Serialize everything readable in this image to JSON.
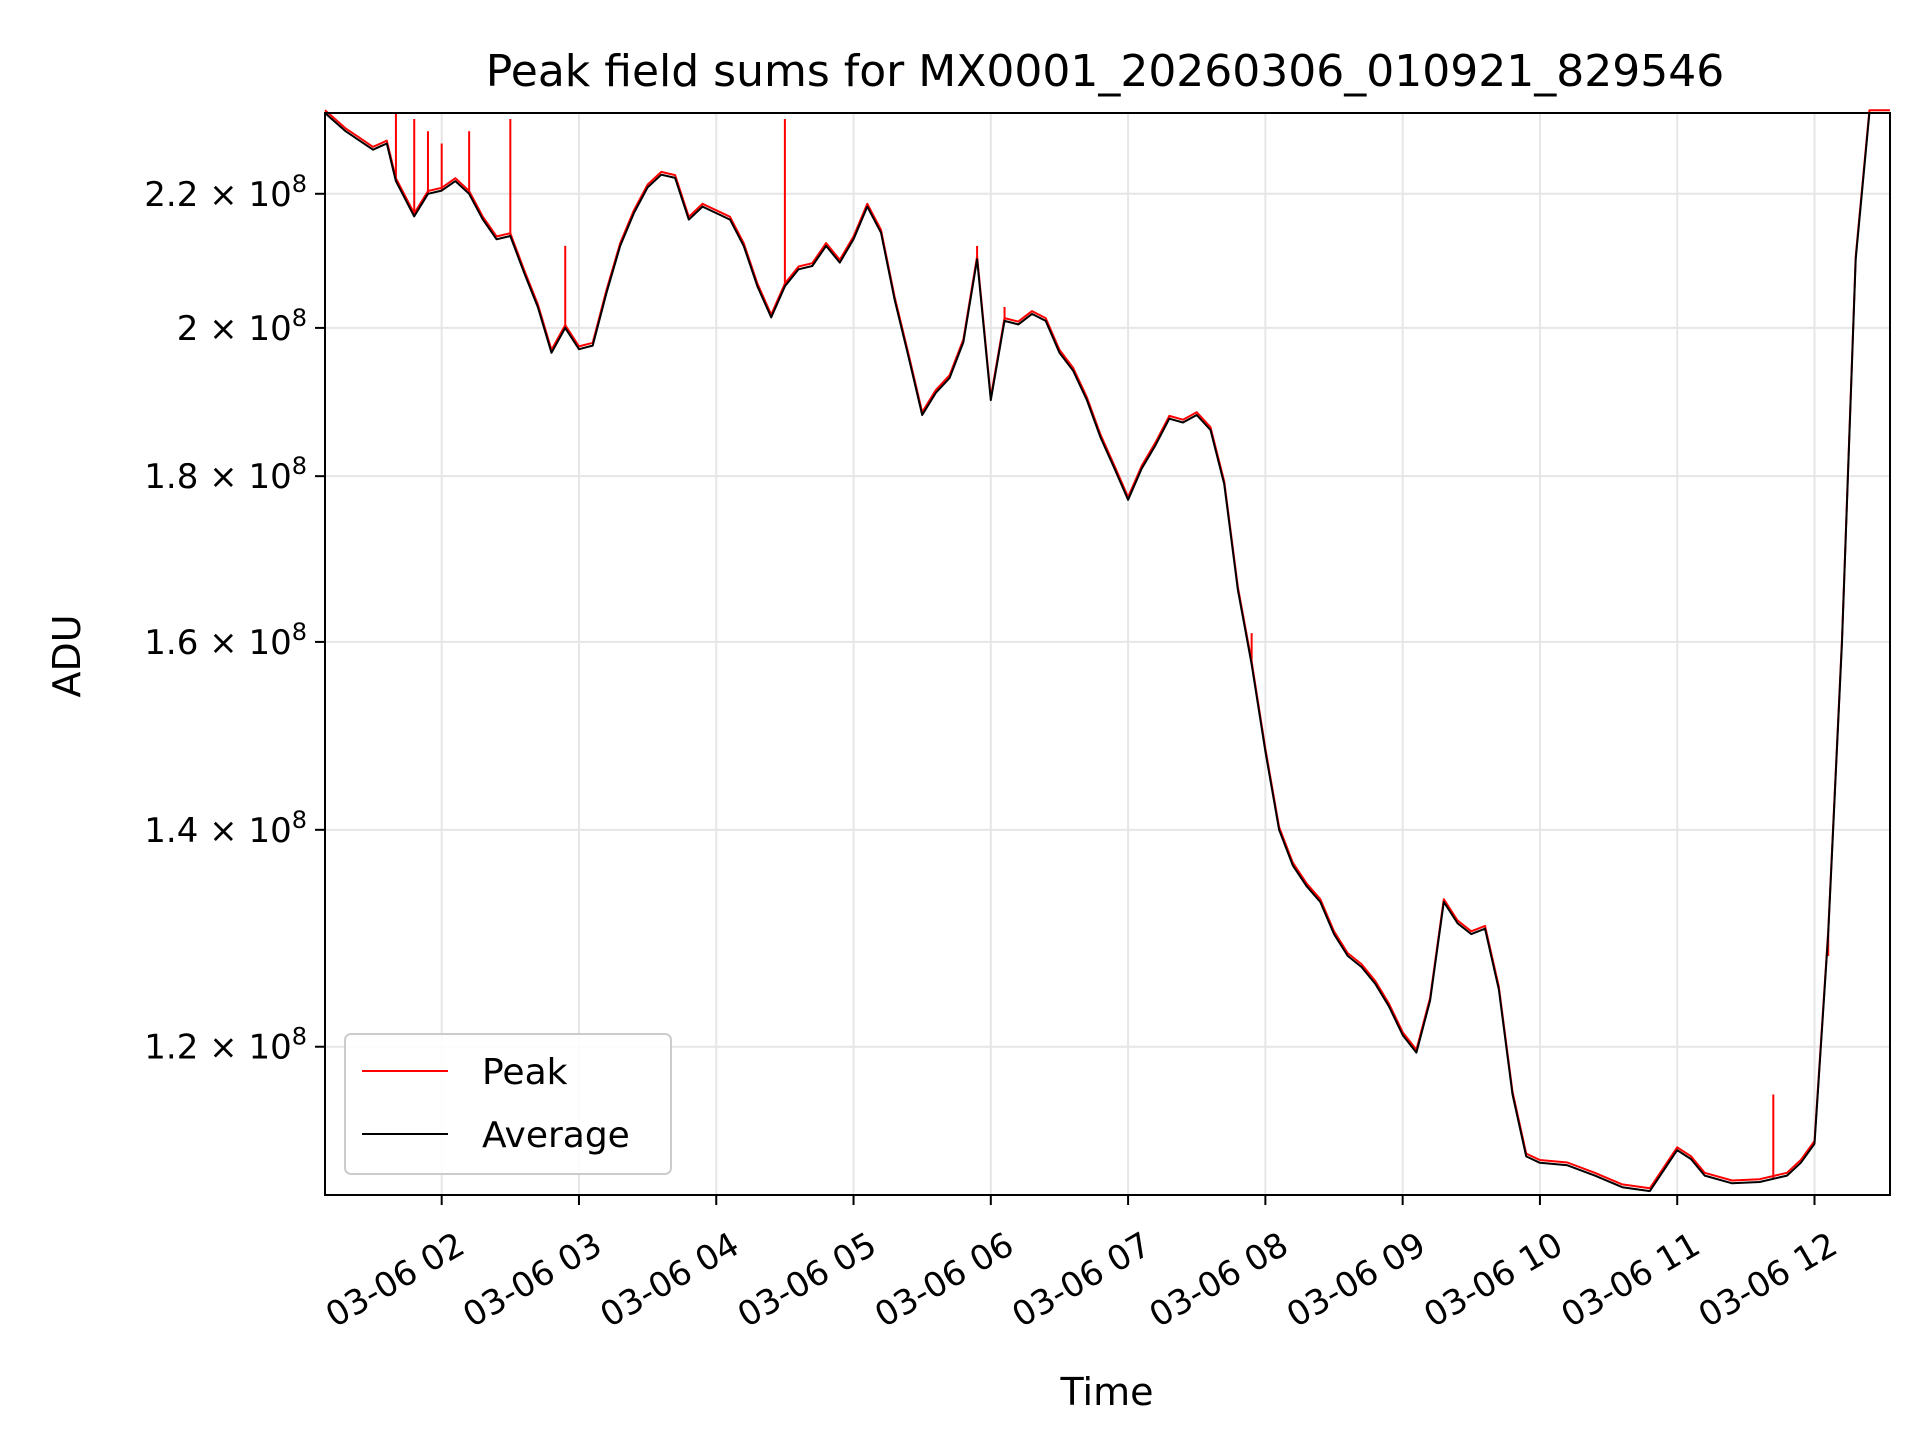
{
  "chart_data": {
    "type": "line",
    "title": "Peak field sums for MX0001_20260306_010921_829546",
    "xlabel": "Time",
    "ylabel": "ADU",
    "xlim": [
      "2026-03-06 01:09",
      "2026-03-06 12:33"
    ],
    "ylim": [
      108000000,
      233000000
    ],
    "yscale": "log",
    "grid": true,
    "legend": {
      "position": "lower-left",
      "entries": [
        "Peak",
        "Average"
      ]
    },
    "x_ticks": [
      "03-06 02",
      "03-06 03",
      "03-06 04",
      "03-06 05",
      "03-06 06",
      "03-06 07",
      "03-06 08",
      "03-06 09",
      "03-06 10",
      "03-06 11",
      "03-06 12"
    ],
    "y_ticks": [
      {
        "value": 120000000,
        "mantissa": "1.2",
        "base": "10",
        "exp": "8"
      },
      {
        "value": 140000000,
        "mantissa": "1.4",
        "base": "10",
        "exp": "8"
      },
      {
        "value": 160000000,
        "mantissa": "1.6",
        "base": "10",
        "exp": "8"
      },
      {
        "value": 180000000,
        "mantissa": "1.8",
        "base": "10",
        "exp": "8"
      },
      {
        "value": 200000000,
        "mantissa": "2",
        "base": "10",
        "exp": "8"
      },
      {
        "value": 220000000,
        "mantissa": "2.2",
        "base": "10",
        "exp": "8"
      }
    ],
    "colors": {
      "Peak": "#ff0000",
      "Average": "#000000",
      "grid": "#e6e6e6"
    },
    "series": [
      {
        "name": "Average",
        "color": "#000000",
        "points": [
          [
            "2026-03-06 01:09",
            233000000
          ],
          [
            "2026-03-06 01:12",
            232000000
          ],
          [
            "2026-03-06 01:18",
            230000000
          ],
          [
            "2026-03-06 01:24",
            228500000
          ],
          [
            "2026-03-06 01:30",
            227000000
          ],
          [
            "2026-03-06 01:36",
            228000000
          ],
          [
            "2026-03-06 01:40",
            222000000
          ],
          [
            "2026-03-06 01:48",
            216500000
          ],
          [
            "2026-03-06 01:54",
            220000000
          ],
          [
            "2026-03-06 02:00",
            220500000
          ],
          [
            "2026-03-06 02:06",
            222000000
          ],
          [
            "2026-03-06 02:12",
            220000000
          ],
          [
            "2026-03-06 02:18",
            216000000
          ],
          [
            "2026-03-06 02:24",
            213000000
          ],
          [
            "2026-03-06 02:30",
            213500000
          ],
          [
            "2026-03-06 02:36",
            208000000
          ],
          [
            "2026-03-06 02:42",
            203000000
          ],
          [
            "2026-03-06 02:48",
            196500000
          ],
          [
            "2026-03-06 02:54",
            200000000
          ],
          [
            "2026-03-06 03:00",
            197000000
          ],
          [
            "2026-03-06 03:06",
            197500000
          ],
          [
            "2026-03-06 03:12",
            205000000
          ],
          [
            "2026-03-06 03:18",
            212000000
          ],
          [
            "2026-03-06 03:24",
            217000000
          ],
          [
            "2026-03-06 03:30",
            221000000
          ],
          [
            "2026-03-06 03:36",
            223000000
          ],
          [
            "2026-03-06 03:42",
            222500000
          ],
          [
            "2026-03-06 03:48",
            216000000
          ],
          [
            "2026-03-06 03:54",
            218000000
          ],
          [
            "2026-03-06 04:00",
            217000000
          ],
          [
            "2026-03-06 04:06",
            216000000
          ],
          [
            "2026-03-06 04:12",
            212000000
          ],
          [
            "2026-03-06 04:18",
            206000000
          ],
          [
            "2026-03-06 04:24",
            201500000
          ],
          [
            "2026-03-06 04:30",
            206000000
          ],
          [
            "2026-03-06 04:36",
            208500000
          ],
          [
            "2026-03-06 04:42",
            209000000
          ],
          [
            "2026-03-06 04:48",
            212000000
          ],
          [
            "2026-03-06 04:54",
            209500000
          ],
          [
            "2026-03-06 05:00",
            213000000
          ],
          [
            "2026-03-06 05:06",
            218000000
          ],
          [
            "2026-03-06 05:12",
            214000000
          ],
          [
            "2026-03-06 05:18",
            204000000
          ],
          [
            "2026-03-06 05:24",
            196000000
          ],
          [
            "2026-03-06 05:30",
            188000000
          ],
          [
            "2026-03-06 05:36",
            191000000
          ],
          [
            "2026-03-06 05:42",
            193000000
          ],
          [
            "2026-03-06 05:48",
            198000000
          ],
          [
            "2026-03-06 05:54",
            210000000
          ],
          [
            "2026-03-06 06:00",
            190000000
          ],
          [
            "2026-03-06 06:06",
            201000000
          ],
          [
            "2026-03-06 06:12",
            200500000
          ],
          [
            "2026-03-06 06:18",
            202000000
          ],
          [
            "2026-03-06 06:24",
            201000000
          ],
          [
            "2026-03-06 06:30",
            196500000
          ],
          [
            "2026-03-06 06:36",
            194000000
          ],
          [
            "2026-03-06 06:42",
            190000000
          ],
          [
            "2026-03-06 06:48",
            185000000
          ],
          [
            "2026-03-06 06:54",
            181000000
          ],
          [
            "2026-03-06 07:00",
            177000000
          ],
          [
            "2026-03-06 07:06",
            181000000
          ],
          [
            "2026-03-06 07:12",
            184000000
          ],
          [
            "2026-03-06 07:18",
            187500000
          ],
          [
            "2026-03-06 07:24",
            187000000
          ],
          [
            "2026-03-06 07:30",
            188000000
          ],
          [
            "2026-03-06 07:36",
            186000000
          ],
          [
            "2026-03-06 07:42",
            179000000
          ],
          [
            "2026-03-06 07:48",
            166000000
          ],
          [
            "2026-03-06 07:54",
            157500000
          ],
          [
            "2026-03-06 08:00",
            148000000
          ],
          [
            "2026-03-06 08:06",
            140000000
          ],
          [
            "2026-03-06 08:12",
            136500000
          ],
          [
            "2026-03-06 08:18",
            134500000
          ],
          [
            "2026-03-06 08:24",
            133000000
          ],
          [
            "2026-03-06 08:30",
            130000000
          ],
          [
            "2026-03-06 08:36",
            128000000
          ],
          [
            "2026-03-06 08:42",
            127000000
          ],
          [
            "2026-03-06 08:48",
            125500000
          ],
          [
            "2026-03-06 08:54",
            123500000
          ],
          [
            "2026-03-06 09:00",
            121000000
          ],
          [
            "2026-03-06 09:06",
            119500000
          ],
          [
            "2026-03-06 09:12",
            124000000
          ],
          [
            "2026-03-06 09:18",
            133000000
          ],
          [
            "2026-03-06 09:24",
            131000000
          ],
          [
            "2026-03-06 09:30",
            130000000
          ],
          [
            "2026-03-06 09:36",
            130500000
          ],
          [
            "2026-03-06 09:42",
            125000000
          ],
          [
            "2026-03-06 09:48",
            116000000
          ],
          [
            "2026-03-06 09:54",
            111000000
          ],
          [
            "2026-03-06 10:00",
            110500000
          ],
          [
            "2026-03-06 10:12",
            110300000
          ],
          [
            "2026-03-06 10:24",
            109500000
          ],
          [
            "2026-03-06 10:36",
            108600000
          ],
          [
            "2026-03-06 10:48",
            108300000
          ],
          [
            "2026-03-06 11:00",
            111500000
          ],
          [
            "2026-03-06 11:06",
            110800000
          ],
          [
            "2026-03-06 11:12",
            109500000
          ],
          [
            "2026-03-06 11:24",
            108900000
          ],
          [
            "2026-03-06 11:36",
            109000000
          ],
          [
            "2026-03-06 11:48",
            109500000
          ],
          [
            "2026-03-06 11:54",
            110500000
          ],
          [
            "2026-03-06 12:00",
            112000000
          ],
          [
            "2026-03-06 12:06",
            130000000
          ],
          [
            "2026-03-06 12:12",
            160000000
          ],
          [
            "2026-03-06 12:18",
            210000000
          ],
          [
            "2026-03-06 12:24",
            233000000
          ],
          [
            "2026-03-06 12:33",
            233000000
          ]
        ]
      },
      {
        "name": "Peak",
        "color": "#ff0000",
        "spikes": [
          [
            "2026-03-06 01:40",
            233000000
          ],
          [
            "2026-03-06 01:48",
            232000000
          ],
          [
            "2026-03-06 01:54",
            230000000
          ],
          [
            "2026-03-06 02:00",
            228000000
          ],
          [
            "2026-03-06 02:12",
            230000000
          ],
          [
            "2026-03-06 02:30",
            232000000
          ],
          [
            "2026-03-06 02:54",
            212000000
          ],
          [
            "2026-03-06 04:30",
            232000000
          ],
          [
            "2026-03-06 05:54",
            212000000
          ],
          [
            "2026-03-06 06:06",
            203000000
          ],
          [
            "2026-03-06 07:54",
            161000000
          ],
          [
            "2026-03-06 11:42",
            116000000
          ],
          [
            "2026-03-06 12:06",
            128000000
          ]
        ]
      }
    ]
  }
}
